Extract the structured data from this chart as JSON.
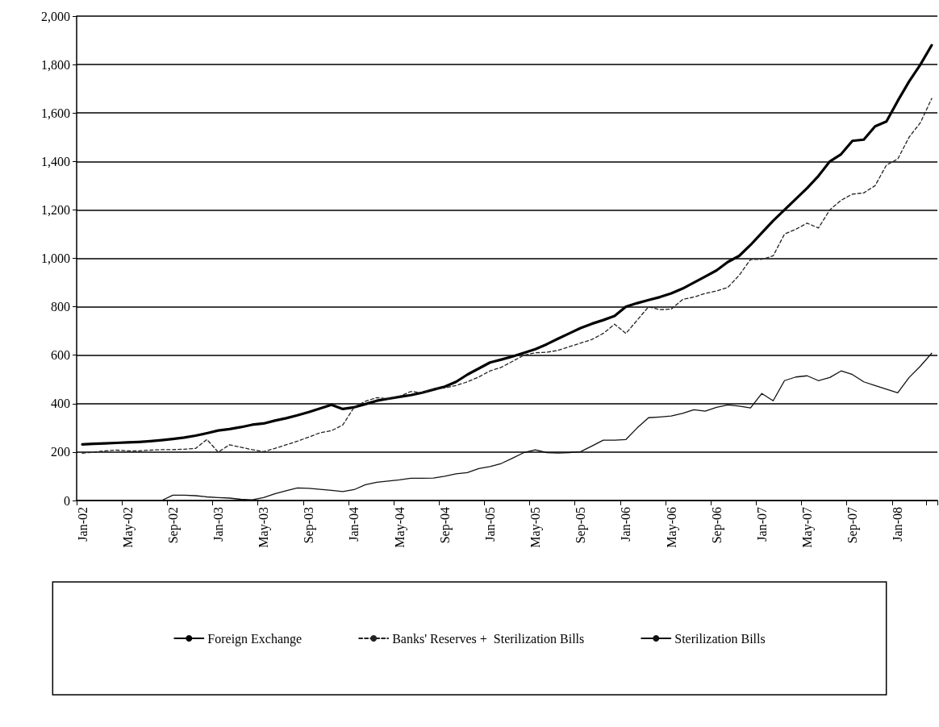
{
  "chart_data": {
    "type": "line",
    "categories": [
      "Jan-02",
      null,
      null,
      null,
      "May-02",
      null,
      null,
      null,
      "Sep-02",
      null,
      null,
      null,
      "Jan-03",
      null,
      null,
      null,
      "May-03",
      null,
      null,
      null,
      "Sep-03",
      null,
      null,
      null,
      "Jan-04",
      null,
      null,
      null,
      "May-04",
      null,
      null,
      null,
      "Sep-04",
      null,
      null,
      null,
      "Jan-05",
      null,
      null,
      null,
      "May-05",
      null,
      null,
      null,
      "Sep-05",
      null,
      null,
      null,
      "Jan-06",
      null,
      null,
      null,
      "May-06",
      null,
      null,
      null,
      "Sep-06",
      null,
      null,
      null,
      "Jan-07",
      null,
      null,
      null,
      "May-07",
      null,
      null,
      null,
      "Sep-07",
      null,
      null,
      null,
      "Jan-08",
      null,
      null,
      null
    ],
    "series": [
      {
        "name": "Foreign Exchange",
        "color": "#000000",
        "line_style": "solid",
        "values": [
          232,
          234,
          236,
          238,
          240,
          242,
          245,
          249,
          254,
          260,
          268,
          278,
          289,
          295,
          303,
          313,
          318,
          330,
          340,
          352,
          365,
          380,
          395,
          378,
          385,
          398,
          412,
          420,
          428,
          435,
          445,
          458,
          470,
          490,
          520,
          545,
          570,
          582,
          595,
          610,
          625,
          645,
          668,
          690,
          712,
          730,
          745,
          762,
          800,
          815,
          828,
          840,
          855,
          875,
          900,
          925,
          950,
          985,
          1010,
          1055,
          1105,
          1155,
          1200,
          1245,
          1290,
          1340,
          1400,
          1430,
          1485,
          1490,
          1545,
          1565,
          1650,
          1730,
          1800,
          1880
        ]
      },
      {
        "name": "Banks' Reserves +  Sterilization Bills",
        "color": "#222222",
        "line_style": "dashed",
        "values": [
          195,
          200,
          205,
          208,
          205,
          205,
          208,
          210,
          210,
          212,
          215,
          252,
          200,
          230,
          220,
          210,
          202,
          215,
          230,
          245,
          262,
          280,
          288,
          312,
          385,
          410,
          425,
          420,
          430,
          450,
          445,
          460,
          465,
          475,
          490,
          510,
          535,
          550,
          575,
          600,
          610,
          612,
          620,
          635,
          650,
          665,
          690,
          728,
          690,
          745,
          800,
          788,
          790,
          830,
          840,
          855,
          865,
          880,
          930,
          995,
          996,
          1010,
          1100,
          1120,
          1145,
          1125,
          1200,
          1240,
          1265,
          1270,
          1300,
          1385,
          1410,
          1500,
          1560,
          1660
        ]
      },
      {
        "name": "Sterilization Bills",
        "color": "#111111",
        "line_style": "solid",
        "values": [
          null,
          null,
          null,
          null,
          null,
          null,
          null,
          0,
          22,
          22,
          20,
          15,
          12,
          10,
          5,
          3,
          12,
          28,
          40,
          52,
          50,
          46,
          42,
          37,
          45,
          65,
          75,
          80,
          85,
          92,
          92,
          93,
          100,
          110,
          115,
          132,
          140,
          153,
          175,
          198,
          209,
          198,
          196,
          198,
          202,
          225,
          249,
          249,
          252,
          300,
          342,
          345,
          349,
          360,
          375,
          369,
          385,
          395,
          390,
          382,
          442,
          412,
          495,
          510,
          515,
          495,
          508,
          535,
          520,
          490,
          475,
          460,
          445,
          508,
          555,
          608
        ]
      }
    ],
    "ylim": [
      0,
      2000
    ],
    "yticks": [
      0,
      200,
      400,
      600,
      800,
      {
        "value": 1000,
        "label": "1,000"
      },
      {
        "value": 1200,
        "label": "1,200"
      },
      {
        "value": 1400,
        "label": "1,400"
      },
      {
        "value": 1600,
        "label": "1,600"
      },
      {
        "value": 1800,
        "label": "1,800"
      },
      {
        "value": 2000,
        "label": "2,000"
      }
    ],
    "grid": "y",
    "legend": "bottom",
    "marker": "none"
  }
}
